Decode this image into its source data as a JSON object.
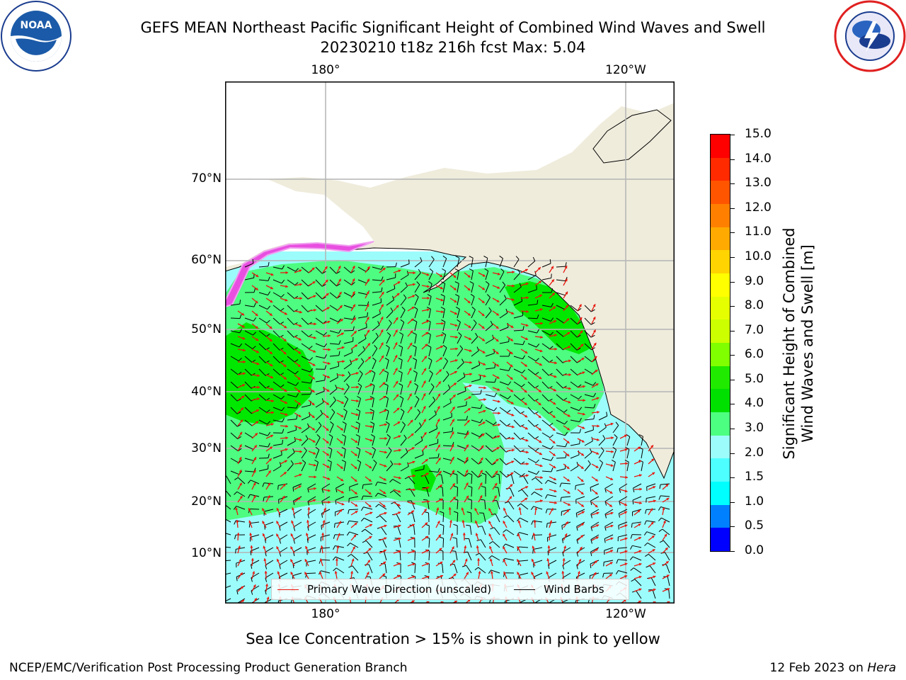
{
  "title": {
    "line1": "GEFS MEAN Northeast Pacific Significant Height of Combined Wind Waves and Swell",
    "line2": "20230210 t18z 216h fcst   Max: 5.04"
  },
  "logos": {
    "noaa": {
      "text": "NOAA",
      "icon": "noaa-logo"
    },
    "nws": {
      "icon": "nws-logo"
    }
  },
  "map": {
    "lon_labels_top": [
      "180°",
      "120°W"
    ],
    "lon_labels_bottom": [
      "180°",
      "120°W"
    ],
    "lat_labels": [
      "70°N",
      "60°N",
      "50°N",
      "40°N",
      "30°N",
      "20°N",
      "10°N"
    ],
    "colors": {
      "land": "#efecdc",
      "ocean_low": "#9cfcfc",
      "ocean_mid": "#4dfc80",
      "ocean_high": "#00e800",
      "wave_arrow": "#e8160c",
      "wind_barb": "#000000",
      "grid": "#b4b4b4"
    },
    "legend": {
      "wave": "Primary Wave Direction (unscaled)",
      "wind": "Wind Barbs"
    }
  },
  "colorbar": {
    "ticks": [
      "15.0",
      "14.0",
      "13.0",
      "12.0",
      "11.0",
      "10.0",
      "9.0",
      "8.0",
      "7.0",
      "6.0",
      "5.0",
      "4.0",
      "3.0",
      "2.0",
      "1.5",
      "1.0",
      "0.5",
      "0.0"
    ],
    "colors_top_to_bottom": [
      "#ff0000",
      "#ff2a00",
      "#ff5500",
      "#ff8000",
      "#ffaa00",
      "#ffd400",
      "#ffff00",
      "#e6ff00",
      "#ccff00",
      "#80ff00",
      "#20ea00",
      "#00e000",
      "#4dff80",
      "#9cfcfc",
      "#4dffff",
      "#00ffff",
      "#0080ff",
      "#0000ff"
    ],
    "label_line1": "Significant Height of Combined",
    "label_line2": "Wind Waves and Swell [m]"
  },
  "caption": "Sea Ice Concentration > 15% is shown in pink to yellow",
  "footer": {
    "left": "NCEP/EMC/Verification Post Processing Product Generation Branch",
    "right_date": "12 Feb 2023 on ",
    "right_host": "Hera"
  }
}
